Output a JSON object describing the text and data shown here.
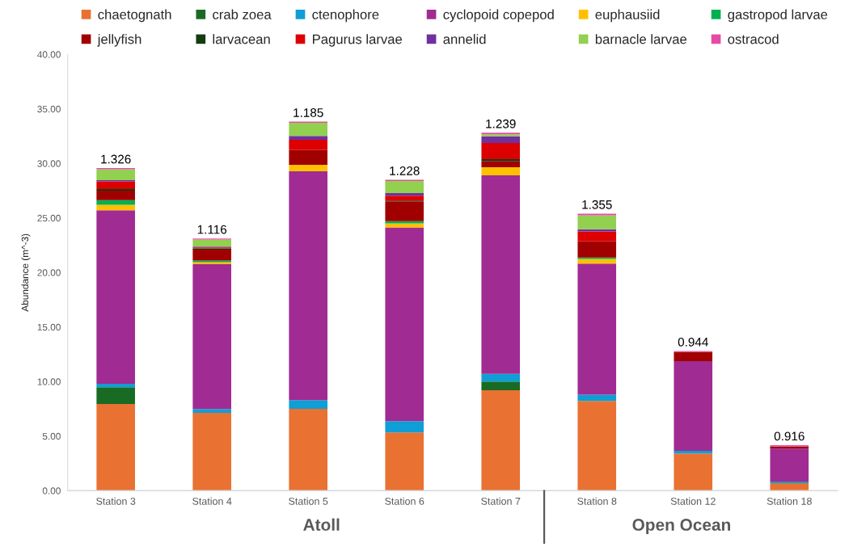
{
  "chart_data": {
    "type": "bar",
    "stacked": true,
    "ylabel": "Abundance (m^-3)",
    "categories": [
      "Station 3",
      "Station 4",
      "Station 5",
      "Station 6",
      "Station 7",
      "Station 8",
      "Station 12",
      "Station 18"
    ],
    "series": [
      {
        "name": "chaetognath",
        "color": "#e97132",
        "values": [
          7.95,
          7.13,
          7.5,
          5.33,
          9.2,
          8.22,
          3.41,
          0.69
        ]
      },
      {
        "name": "crab zoea",
        "color": "#196b24",
        "values": [
          1.53,
          0,
          0,
          0,
          0.8,
          0,
          0,
          0
        ]
      },
      {
        "name": "ctenophore",
        "color": "#0f9ed5",
        "values": [
          0.32,
          0.35,
          0.8,
          1.04,
          0.7,
          0.57,
          0.24,
          0.15
        ]
      },
      {
        "name": "cyclopoid copepod",
        "color": "#a02b93",
        "values": [
          15.9,
          13.28,
          20.98,
          17.76,
          18.21,
          12.02,
          8.22,
          3.01
        ]
      },
      {
        "name": "euphausiid",
        "color": "#ffc000",
        "values": [
          0.5,
          0.18,
          0.59,
          0.37,
          0.74,
          0.44,
          0,
          0
        ]
      },
      {
        "name": "gastropod larvae",
        "color": "#00b050",
        "values": [
          0.44,
          0.15,
          0,
          0.21,
          0,
          0.13,
          0,
          0
        ]
      },
      {
        "name": "jellyfish",
        "color": "#a00000",
        "values": [
          0.86,
          1.0,
          1.36,
          1.82,
          0.57,
          1.47,
          0.85,
          0.2
        ]
      },
      {
        "name": "larvacean",
        "color": "#123d12",
        "values": [
          0.15,
          0.12,
          0,
          0.06,
          0.17,
          0,
          0,
          0
        ]
      },
      {
        "name": "Pagurus larvae",
        "color": "#dd0000",
        "values": [
          0.7,
          0.08,
          0.94,
          0.45,
          1.48,
          0.92,
          0,
          0
        ]
      },
      {
        "name": "annelid",
        "color": "#7030a0",
        "values": [
          0.12,
          0.09,
          0.35,
          0.24,
          0.6,
          0.2,
          0,
          0
        ]
      },
      {
        "name": "barnacle larvae",
        "color": "#92d050",
        "values": [
          1.0,
          0.65,
          1.21,
          1.11,
          0.2,
          1.28,
          0,
          0
        ]
      },
      {
        "name": "ostracod",
        "color": "#e54ba5",
        "values": [
          0.1,
          0.09,
          0.1,
          0.11,
          0.14,
          0.15,
          0.08,
          0.12
        ]
      }
    ],
    "ylim": [
      0,
      40
    ],
    "yticks": [
      {
        "value": 0,
        "label": "0.00"
      },
      {
        "value": 5,
        "label": "5.00"
      },
      {
        "value": 10,
        "label": "10.00"
      },
      {
        "value": 15,
        "label": "15.00"
      },
      {
        "value": 20,
        "label": "20.00"
      },
      {
        "value": 25,
        "label": "25.00"
      },
      {
        "value": 30,
        "label": "30.00"
      },
      {
        "value": 35,
        "label": "35.00"
      },
      {
        "value": 40,
        "label": "40.00"
      }
    ],
    "annotations": [
      {
        "text": "1.326",
        "x": "Station 3",
        "y": 29.57
      },
      {
        "text": "1.116",
        "x": "Station 4",
        "y": 23.12
      },
      {
        "text": "1.185",
        "x": "Station 5",
        "y": 33.83
      },
      {
        "text": "1.228",
        "x": "Station 6",
        "y": 28.5
      },
      {
        "text": "1.239",
        "x": "Station 7",
        "y": 32.81
      },
      {
        "text": "1.355",
        "x": "Station 8",
        "y": 25.4
      },
      {
        "text": "0.944",
        "x": "Station 12",
        "y": 12.8
      },
      {
        "text": "0.916",
        "x": "Station 18",
        "y": 4.17
      },
      "Atoll",
      "Open Ocean"
    ],
    "grid": false,
    "legend": "top"
  }
}
